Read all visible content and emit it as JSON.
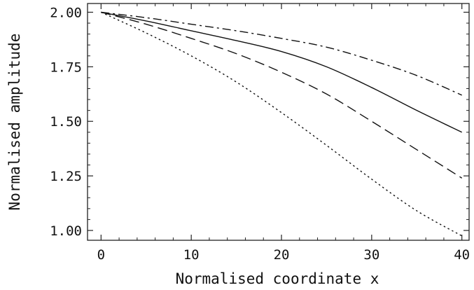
{
  "chart_data": {
    "type": "line",
    "xlabel": "Normalised coordinate x",
    "ylabel": "Normalised amplitude",
    "xlim": [
      -1.5,
      40.8
    ],
    "ylim": [
      0.955,
      2.04
    ],
    "x_ticks": [
      0,
      10,
      20,
      30,
      40
    ],
    "x_tick_labels": [
      "0",
      "10",
      "20",
      "30",
      "40"
    ],
    "y_ticks": [
      1.0,
      1.25,
      1.5,
      1.75,
      2.0
    ],
    "y_tick_labels": [
      "1.00",
      "1.25",
      "1.50",
      "1.75",
      "2.00"
    ],
    "grid": false,
    "legend": "none",
    "series": [
      {
        "style": "dash-dot",
        "x": [
          0,
          5,
          10,
          15,
          20,
          25,
          30,
          35,
          40
        ],
        "y": [
          2.0,
          1.975,
          1.945,
          1.915,
          1.88,
          1.84,
          1.78,
          1.71,
          1.62
        ]
      },
      {
        "style": "solid",
        "x": [
          0,
          5,
          10,
          15,
          20,
          25,
          30,
          35,
          40
        ],
        "y": [
          2.0,
          1.96,
          1.915,
          1.87,
          1.82,
          1.75,
          1.655,
          1.55,
          1.45
        ]
      },
      {
        "style": "dashed",
        "x": [
          0,
          5,
          10,
          15,
          20,
          25,
          30,
          35,
          40
        ],
        "y": [
          2.0,
          1.945,
          1.88,
          1.81,
          1.725,
          1.625,
          1.5,
          1.37,
          1.24
        ]
      },
      {
        "style": "dotted",
        "x": [
          0,
          5,
          10,
          15,
          20,
          25,
          30,
          35,
          40
        ],
        "y": [
          2.0,
          1.905,
          1.8,
          1.68,
          1.54,
          1.39,
          1.235,
          1.09,
          0.975
        ]
      }
    ]
  }
}
